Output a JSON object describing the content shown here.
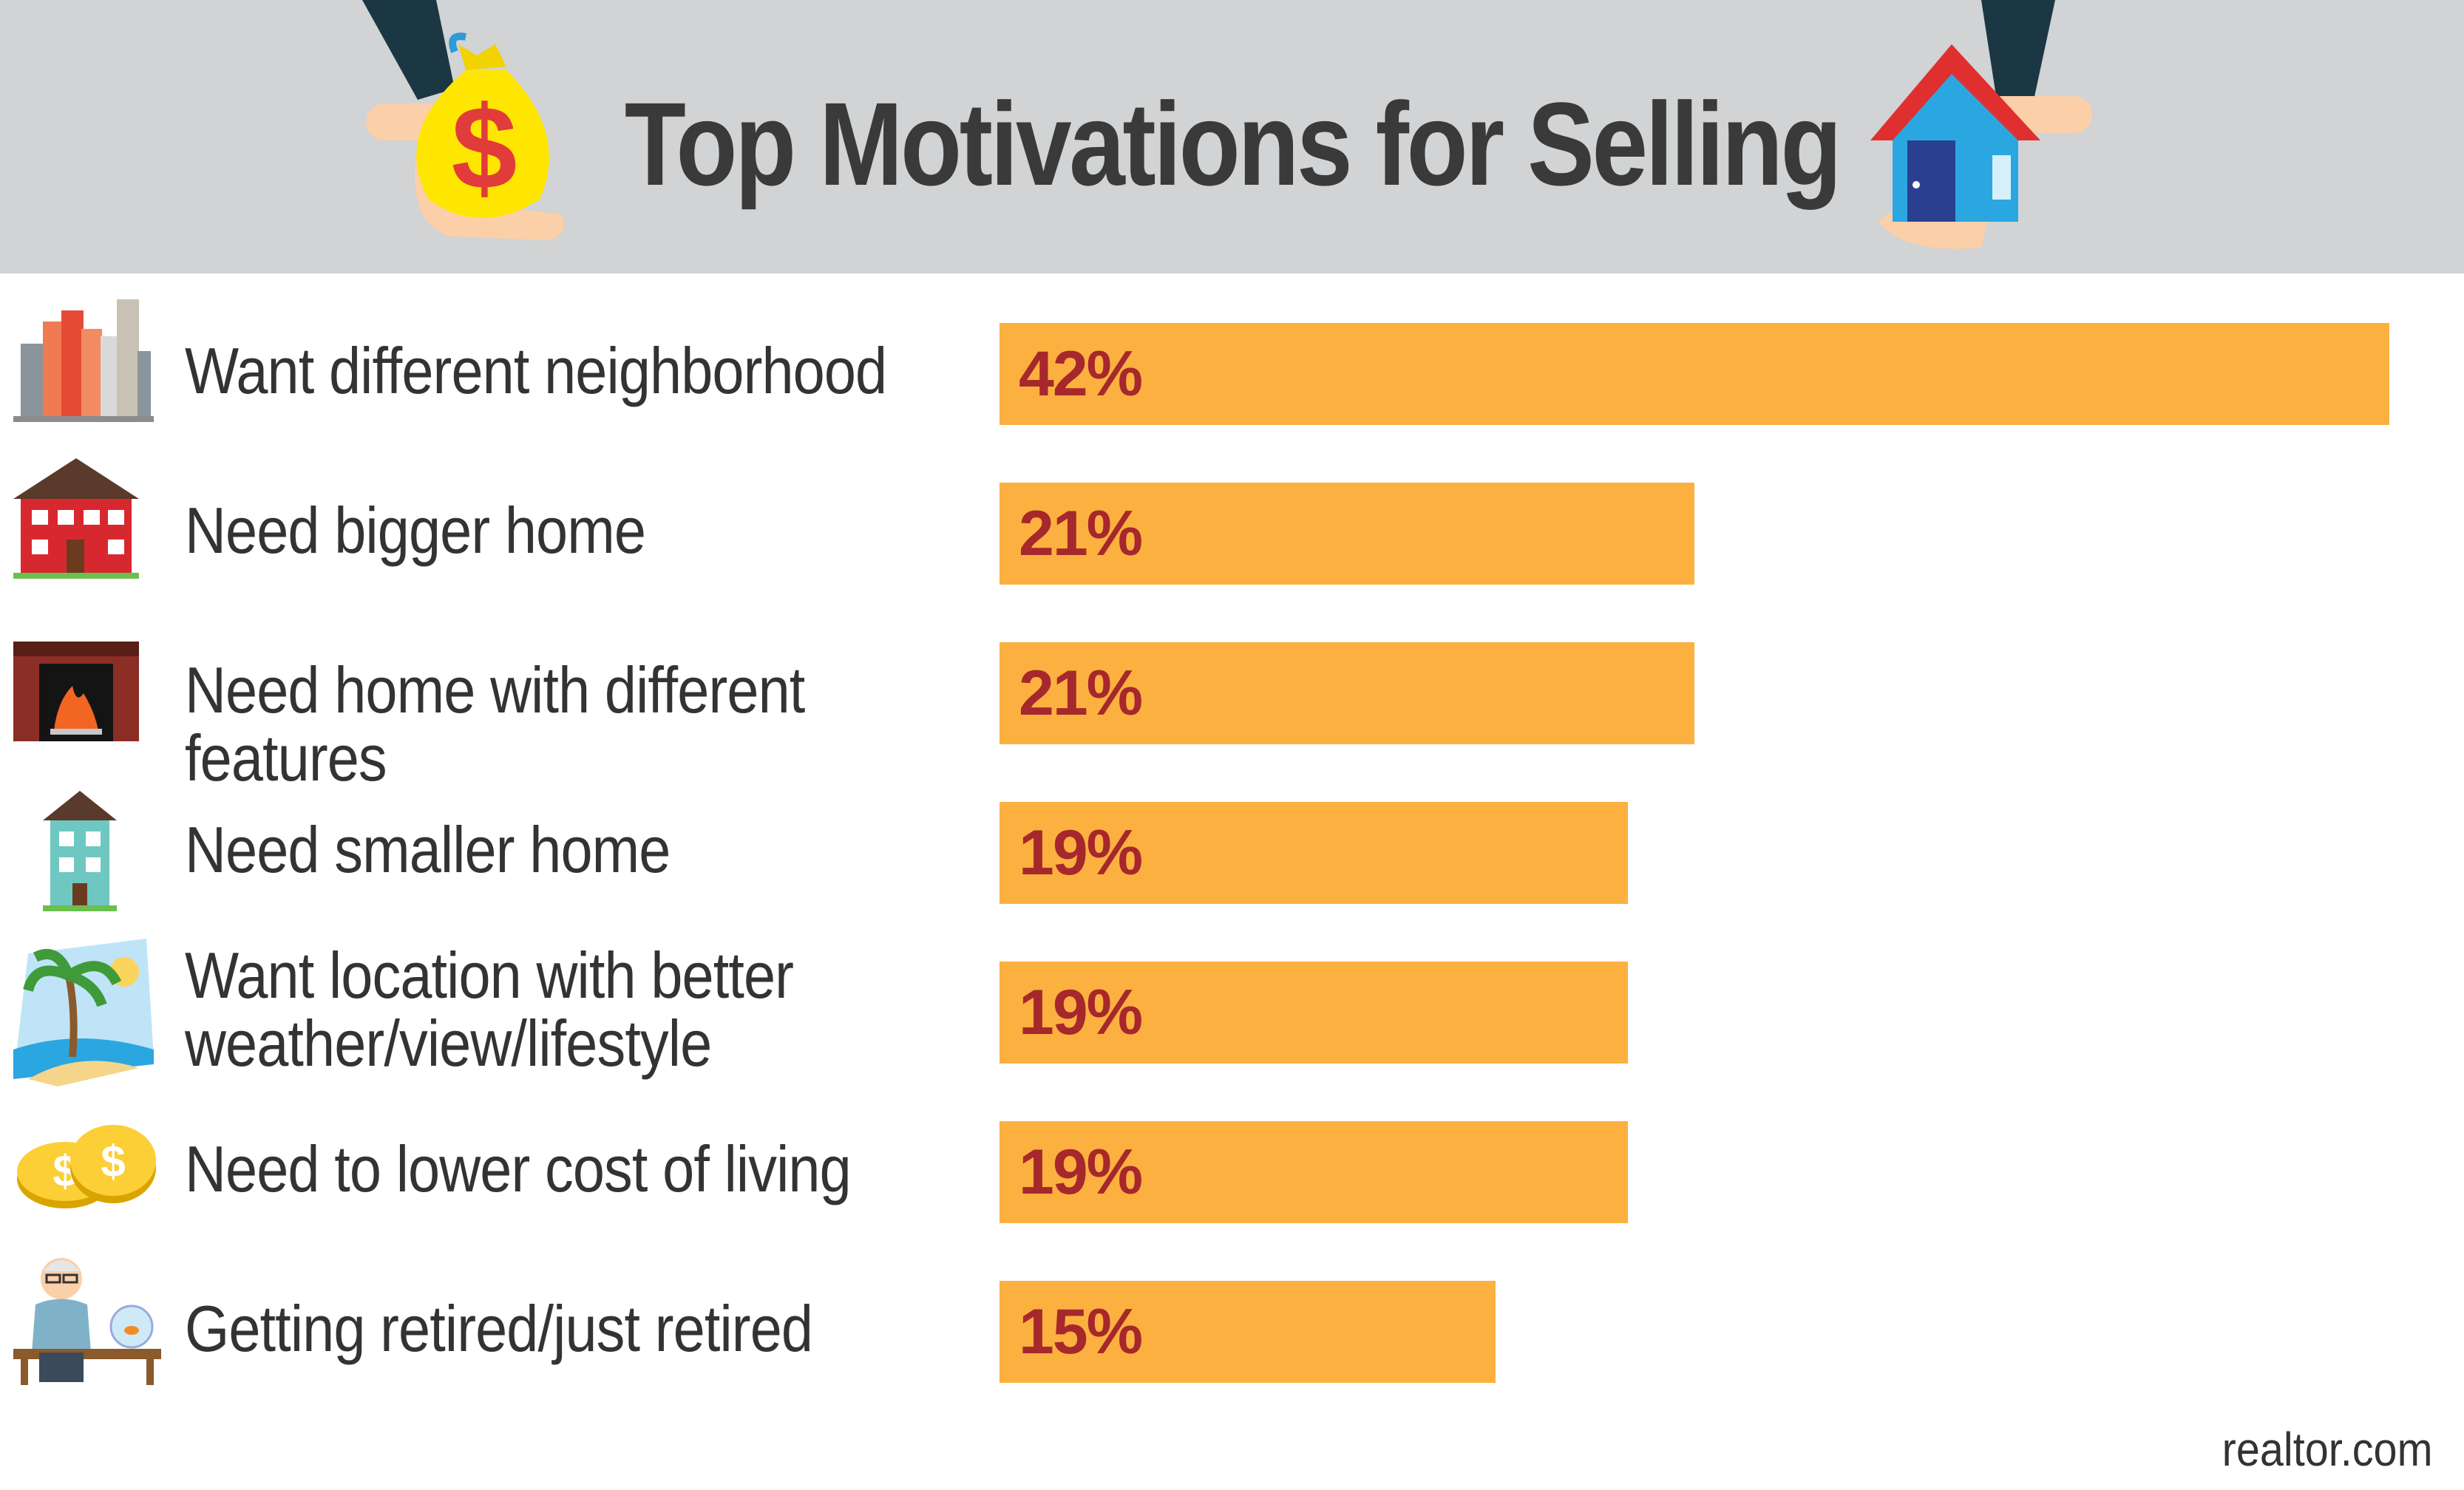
{
  "chart_data": {
    "type": "bar",
    "orientation": "horizontal",
    "title": "Top Motivations for Selling",
    "categories": [
      "Want different neighborhood",
      "Need bigger home",
      "Need home with different features",
      "Need smaller home",
      "Want location with better weather/view/lifestyle",
      "Need to lower cost of living",
      "Getting retired/just retired"
    ],
    "category_lines": [
      [
        "Want different neighborhood"
      ],
      [
        "Need bigger home"
      ],
      [
        "Need home with different features"
      ],
      [
        "Need smaller home"
      ],
      [
        "Want location with better",
        "weather/view/lifestyle"
      ],
      [
        "Need to lower cost of living"
      ],
      [
        "Getting retired/just retired"
      ]
    ],
    "values": [
      42,
      21,
      21,
      19,
      19,
      19,
      15
    ],
    "value_labels": [
      "42%",
      "21%",
      "21%",
      "19%",
      "19%",
      "19%",
      "15%"
    ],
    "unit": "%",
    "xlim": [
      0,
      42
    ],
    "grid": false,
    "legend": "none"
  },
  "icons": [
    "city-buildings-icon",
    "red-house-icon",
    "fireplace-icon",
    "small-house-icon",
    "beach-palm-icon",
    "coins-icon",
    "retired-man-icon"
  ],
  "source": "realtor.com",
  "colors": {
    "header_bg": "#d1d3d4",
    "bar": "#fbb040",
    "value_text": "#a6272c",
    "title_text": "#3a3a3a"
  }
}
